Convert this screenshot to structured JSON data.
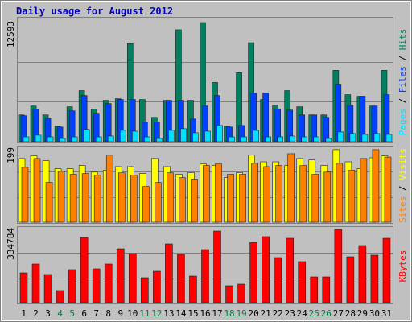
{
  "chart_data": [
    {
      "type": "bar",
      "title": "Daily usage for August 2012",
      "title_color": "#0000c0",
      "ylim": [
        0,
        12593
      ],
      "yticks": [
        12593
      ],
      "legend_separator": " / ",
      "series": [
        {
          "name": "Hits",
          "color": "#008060",
          "values": [
            2830,
            3770,
            2830,
            1630,
            3690,
            5400,
            3430,
            4370,
            4540,
            10370,
            4460,
            2570,
            4370,
            11830,
            4370,
            12593,
            6260,
            1630,
            7290,
            10460,
            4460,
            3860,
            5400,
            3690,
            2830,
            2830,
            7540,
            4970,
            4800,
            3770,
            7540
          ]
        },
        {
          "name": "Files",
          "color": "#0040ff",
          "values": [
            2750,
            3430,
            2490,
            1550,
            3260,
            4880,
            3000,
            4030,
            4460,
            4460,
            2060,
            2060,
            4370,
            4370,
            2400,
            3770,
            4880,
            1550,
            1710,
            5140,
            5140,
            3430,
            3340,
            2830,
            2830,
            2570,
            6080,
            3860,
            4800,
            3770,
            4970
          ]
        },
        {
          "name": "Pages",
          "color": "#00e0ff",
          "values": [
            510,
            690,
            510,
            340,
            510,
            1290,
            510,
            600,
            1200,
            1110,
            510,
            340,
            1200,
            1370,
            940,
            1110,
            1710,
            510,
            510,
            1200,
            510,
            510,
            600,
            510,
            510,
            340,
            1030,
            860,
            770,
            860,
            770
          ]
        }
      ]
    },
    {
      "type": "bar",
      "ylim": [
        0,
        199
      ],
      "yticks": [
        199
      ],
      "legend_separator": " / ",
      "series": [
        {
          "name": "Visits",
          "color": "#ffff00",
          "values": [
            173,
            180,
            167,
            145,
            145,
            154,
            136,
            141,
            151,
            151,
            132,
            173,
            151,
            130,
            134,
            158,
            154,
            121,
            134,
            182,
            164,
            164,
            154,
            173,
            169,
            154,
            197,
            164,
            145,
            175,
            180
          ]
        },
        {
          "name": "Sites",
          "color": "#ff8000",
          "values": [
            149,
            173,
            108,
            138,
            130,
            132,
            128,
            182,
            134,
            128,
            97,
            108,
            134,
            121,
            117,
            154,
            158,
            130,
            130,
            160,
            151,
            154,
            186,
            154,
            130,
            136,
            160,
            141,
            173,
            197,
            177
          ]
        }
      ]
    },
    {
      "type": "bar",
      "ylim": [
        0,
        334784
      ],
      "yticks": [
        334784
      ],
      "categories": [
        "1",
        "2",
        "3",
        "4",
        "5",
        "6",
        "7",
        "8",
        "9",
        "10",
        "11",
        "12",
        "13",
        "14",
        "15",
        "16",
        "17",
        "18",
        "19",
        "20",
        "21",
        "22",
        "23",
        "24",
        "25",
        "26",
        "27",
        "28",
        "29",
        "30",
        "31"
      ],
      "category_colors": [
        "#000000",
        "#000000",
        "#000000",
        "#008040",
        "#008040",
        "#000000",
        "#000000",
        "#000000",
        "#000000",
        "#000000",
        "#008040",
        "#008040",
        "#000000",
        "#000000",
        "#000000",
        "#000000",
        "#000000",
        "#008040",
        "#008040",
        "#000000",
        "#000000",
        "#000000",
        "#000000",
        "#000000",
        "#008040",
        "#008040",
        "#000000",
        "#000000",
        "#000000",
        "#000000",
        "#000000"
      ],
      "series": [
        {
          "name": "KBytes",
          "color": "#ff0000",
          "values": [
            136100,
            176600,
            128800,
            55200,
            150800,
            298000,
            154500,
            176600,
            246500,
            224400,
            114100,
            143500,
            268600,
            220700,
            121400,
            242800,
            327400,
            77300,
            84600,
            275900,
            301700,
            206000,
            294300,
            187600,
            117700,
            117700,
            334784,
            209700,
            261200,
            217100,
            294300
          ]
        }
      ]
    }
  ]
}
